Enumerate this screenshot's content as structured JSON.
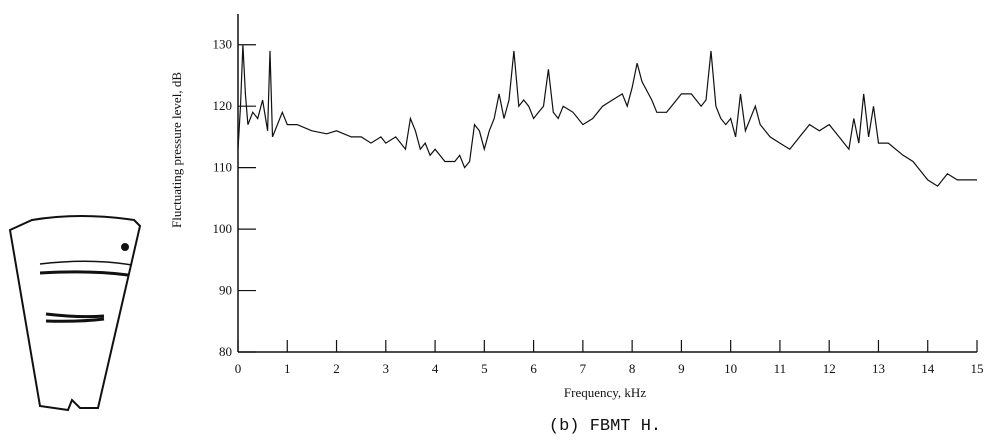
{
  "chart_data": {
    "type": "line",
    "caption": "(b) FBMT H.",
    "xlabel": "Frequency, kHz",
    "ylabel": "Fluctuating pressure level, dB",
    "color": "#111111",
    "xlim": [
      0,
      15
    ],
    "ylim": [
      80,
      135
    ],
    "xticks": [
      0,
      1,
      2,
      3,
      4,
      5,
      6,
      7,
      8,
      9,
      10,
      11,
      12,
      13,
      14,
      15
    ],
    "yticks": [
      80,
      90,
      100,
      110,
      120,
      130
    ],
    "x": [
      0,
      0.05,
      0.1,
      0.15,
      0.2,
      0.3,
      0.4,
      0.5,
      0.6,
      0.65,
      0.7,
      0.8,
      0.9,
      1.0,
      1.2,
      1.5,
      1.8,
      2.0,
      2.3,
      2.5,
      2.7,
      2.9,
      3.0,
      3.2,
      3.4,
      3.5,
      3.6,
      3.7,
      3.8,
      3.9,
      4.0,
      4.2,
      4.4,
      4.5,
      4.6,
      4.7,
      4.8,
      4.9,
      5.0,
      5.1,
      5.2,
      5.3,
      5.4,
      5.5,
      5.6,
      5.7,
      5.8,
      5.9,
      6.0,
      6.1,
      6.2,
      6.3,
      6.4,
      6.5,
      6.6,
      6.8,
      7.0,
      7.2,
      7.4,
      7.6,
      7.8,
      7.9,
      8.0,
      8.1,
      8.2,
      8.4,
      8.5,
      8.7,
      8.9,
      9.0,
      9.2,
      9.4,
      9.5,
      9.6,
      9.7,
      9.8,
      9.9,
      10.0,
      10.1,
      10.2,
      10.3,
      10.5,
      10.6,
      10.8,
      11.0,
      11.2,
      11.4,
      11.6,
      11.8,
      12.0,
      12.2,
      12.4,
      12.5,
      12.6,
      12.7,
      12.8,
      12.9,
      13.0,
      13.2,
      13.5,
      13.7,
      13.9,
      14.0,
      14.2,
      14.4,
      14.6,
      14.8,
      15.0
    ],
    "values": [
      113,
      120,
      130,
      122,
      117,
      119,
      118,
      121,
      116,
      129,
      115,
      117,
      119,
      117,
      117,
      116,
      115.5,
      116,
      115,
      115,
      114,
      115,
      114,
      115,
      113,
      118,
      116,
      113,
      114,
      112,
      113,
      111,
      111,
      112,
      110,
      111,
      117,
      116,
      113,
      116,
      118,
      122,
      118,
      121,
      129,
      120,
      121,
      120,
      118,
      119,
      120,
      126,
      119,
      118,
      120,
      119,
      117,
      118,
      120,
      121,
      122,
      120,
      123,
      127,
      124,
      121,
      119,
      119,
      121,
      122,
      122,
      120,
      121,
      129,
      120,
      118,
      117,
      118,
      115,
      122,
      116,
      120,
      117,
      115,
      114,
      113,
      115,
      117,
      116,
      117,
      115,
      113,
      118,
      114,
      122,
      115,
      120,
      114,
      114,
      112,
      111,
      109,
      108,
      107,
      109,
      108,
      108,
      108
    ]
  }
}
